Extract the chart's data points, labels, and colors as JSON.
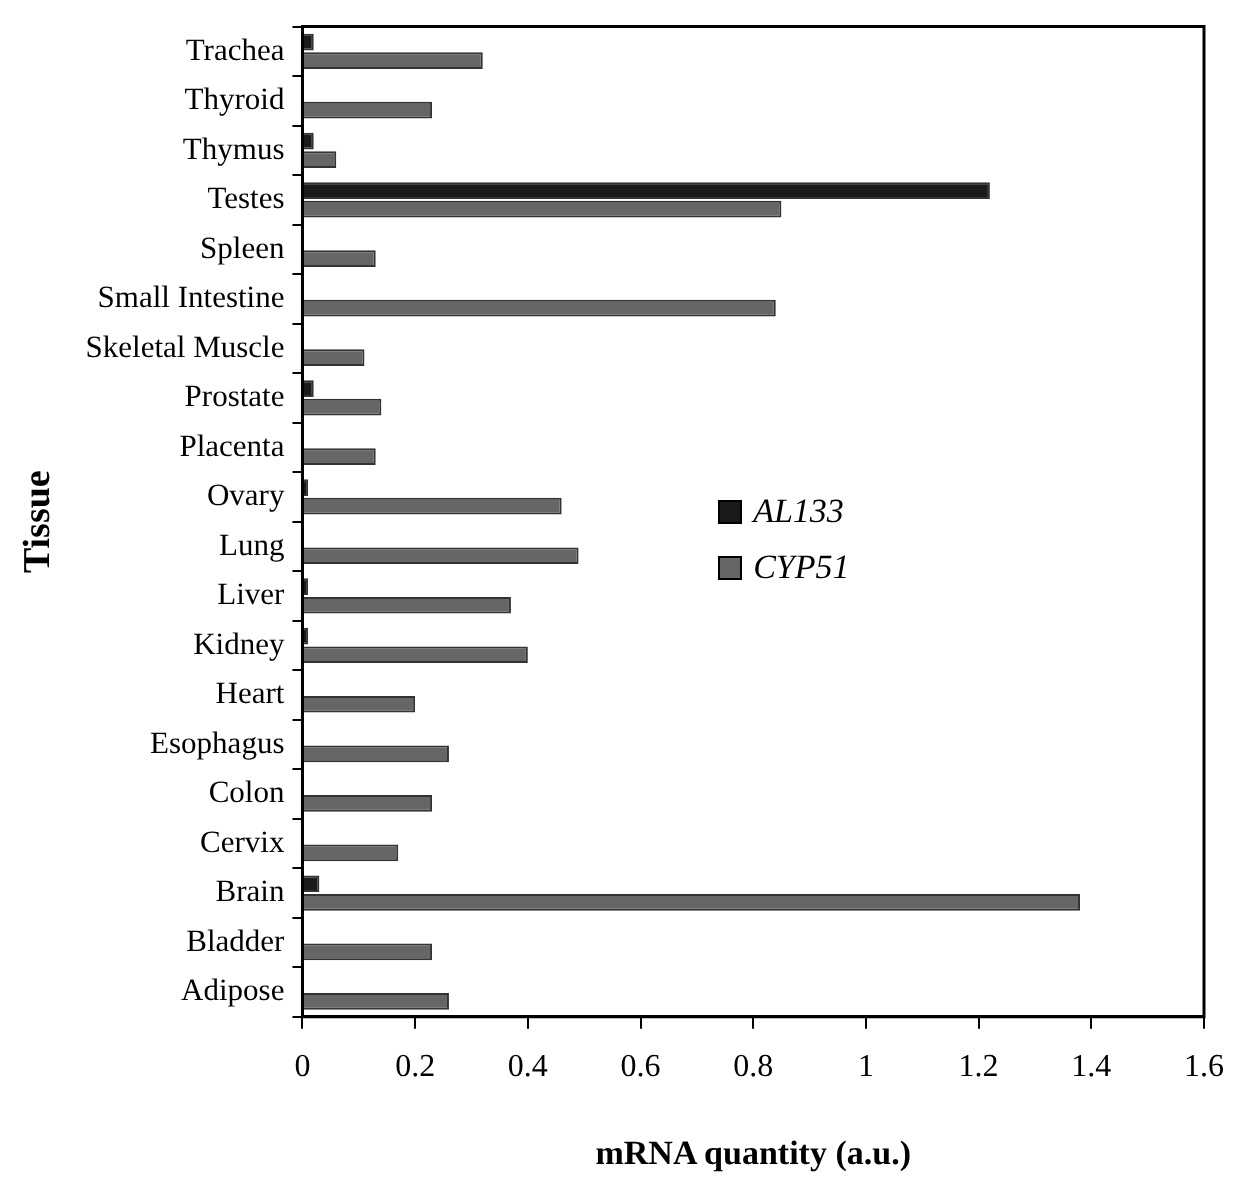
{
  "chart_data": {
    "type": "bar",
    "orientation": "horizontal",
    "xlabel": "mRNA quantity (a.u.)",
    "ylabel": "Tissue",
    "categories": [
      "Trachea",
      "Thyroid",
      "Thymus",
      "Testes",
      "Spleen",
      "Small Intestine",
      "Skeletal Muscle",
      "Prostate",
      "Placenta",
      "Ovary",
      "Lung",
      "Liver",
      "Kidney",
      "Heart",
      "Esophagus",
      "Colon",
      "Cervix",
      "Brain",
      "Bladder",
      "Adipose"
    ],
    "series": [
      {
        "name": "AL133",
        "color": "#1a1a1a",
        "values": [
          0.02,
          0,
          0.02,
          1.22,
          0,
          0,
          0,
          0.02,
          0,
          0.01,
          0,
          0.01,
          0.01,
          0,
          0,
          0,
          0,
          0.03,
          0,
          0
        ]
      },
      {
        "name": "CYP51",
        "color": "#666666",
        "values": [
          0.32,
          0.23,
          0.06,
          0.85,
          0.13,
          0.84,
          0.11,
          0.14,
          0.13,
          0.46,
          0.49,
          0.37,
          0.4,
          0.2,
          0.26,
          0.23,
          0.17,
          1.38,
          0.23,
          0.26
        ]
      }
    ],
    "xlim": [
      0,
      1.6
    ],
    "xticks": [
      0,
      0.2,
      0.4,
      0.6,
      0.8,
      1,
      1.2,
      1.4,
      1.6
    ],
    "grid": false,
    "legend": "right"
  }
}
